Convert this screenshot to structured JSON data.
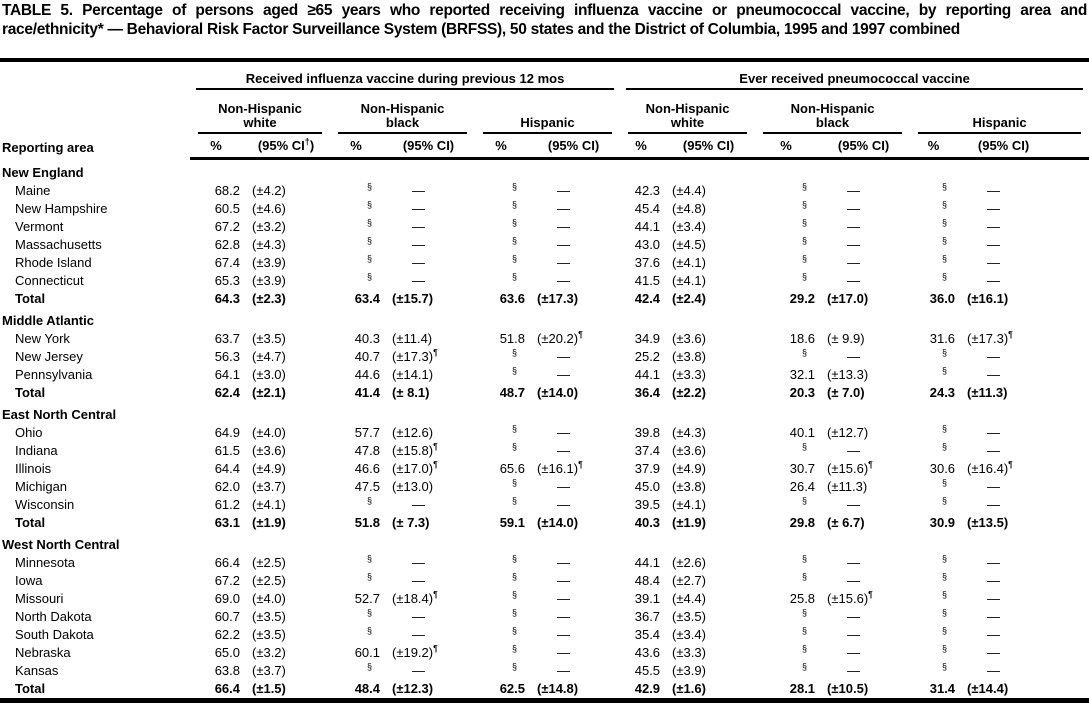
{
  "colors": {
    "text": "#000000",
    "background": "#ffffff",
    "rule": "#000000"
  },
  "title": "TABLE 5. Percentage of persons aged ≥65 years who reported receiving influenza vaccine or pneumococcal vaccine, by reporting area and race/ethnicity* — Behavioral Risk Factor Surveillance System (BRFSS), 50 states and the District of Columbia, 1995 and 1997 combined",
  "header": {
    "reporting_area_label": "Reporting area",
    "pct_label": "%",
    "ci_label": "(95% CI)",
    "ci_label_first": "(95% CI†)",
    "groups": [
      {
        "label": "Received influenza vaccine during previous 12 mos",
        "subgroups": [
          {
            "lines": [
              "Non-Hispanic",
              "white"
            ]
          },
          {
            "lines": [
              "Non-Hispanic",
              "black"
            ]
          },
          {
            "lines": [
              "Hispanic"
            ]
          }
        ]
      },
      {
        "label": "Ever received pneumococcal vaccine",
        "subgroups": [
          {
            "lines": [
              "Non-Hispanic",
              "white"
            ]
          },
          {
            "lines": [
              "Non-Hispanic",
              "black"
            ]
          },
          {
            "lines": [
              "Hispanic"
            ]
          }
        ]
      }
    ]
  },
  "sections": [
    {
      "name": "New England",
      "rows": [
        {
          "label": "Maine",
          "bold": false,
          "cells": [
            "68.2",
            "(±4.2)",
            "§",
            "—",
            "§",
            "—",
            "42.3",
            "(±4.4)",
            "§",
            "—",
            "§",
            "—"
          ]
        },
        {
          "label": "New Hampshire",
          "bold": false,
          "cells": [
            "60.5",
            "(±4.6)",
            "§",
            "—",
            "§",
            "—",
            "45.4",
            "(±4.8)",
            "§",
            "—",
            "§",
            "—"
          ]
        },
        {
          "label": "Vermont",
          "bold": false,
          "cells": [
            "67.2",
            "(±3.2)",
            "§",
            "—",
            "§",
            "—",
            "44.1",
            "(±3.4)",
            "§",
            "—",
            "§",
            "—"
          ]
        },
        {
          "label": "Massachusetts",
          "bold": false,
          "cells": [
            "62.8",
            "(±4.3)",
            "§",
            "—",
            "§",
            "—",
            "43.0",
            "(±4.5)",
            "§",
            "—",
            "§",
            "—"
          ]
        },
        {
          "label": "Rhode Island",
          "bold": false,
          "cells": [
            "67.4",
            "(±3.9)",
            "§",
            "—",
            "§",
            "—",
            "37.6",
            "(±4.1)",
            "§",
            "—",
            "§",
            "—"
          ]
        },
        {
          "label": "Connecticut",
          "bold": false,
          "cells": [
            "65.3",
            "(±3.9)",
            "§",
            "—",
            "§",
            "—",
            "41.5",
            "(±4.1)",
            "§",
            "—",
            "§",
            "—"
          ]
        },
        {
          "label": "Total",
          "bold": true,
          "cells": [
            "64.3",
            "(±2.3)",
            "63.4",
            "(±15.7)",
            "63.6",
            "(±17.3)",
            "42.4",
            "(±2.4)",
            "29.2",
            "(±17.0)",
            "36.0",
            "(±16.1)"
          ]
        }
      ]
    },
    {
      "name": "Middle Atlantic",
      "rows": [
        {
          "label": "New York",
          "bold": false,
          "cells": [
            "63.7",
            "(±3.5)",
            "40.3",
            "(±11.4)",
            "51.8",
            "(±20.2)¶",
            "34.9",
            "(±3.6)",
            "18.6",
            "(± 9.9)",
            "31.6",
            "(±17.3)¶"
          ]
        },
        {
          "label": "New Jersey",
          "bold": false,
          "cells": [
            "56.3",
            "(±4.7)",
            "40.7",
            "(±17.3)¶",
            "§",
            "—",
            "25.2",
            "(±3.8)",
            "§",
            "—",
            "§",
            "—"
          ]
        },
        {
          "label": "Pennsylvania",
          "bold": false,
          "cells": [
            "64.1",
            "(±3.0)",
            "44.6",
            "(±14.1)",
            "§",
            "—",
            "44.1",
            "(±3.3)",
            "32.1",
            "(±13.3)",
            "§",
            "—"
          ]
        },
        {
          "label": "Total",
          "bold": true,
          "cells": [
            "62.4",
            "(±2.1)",
            "41.4",
            "(± 8.1)",
            "48.7",
            "(±14.0)",
            "36.4",
            "(±2.2)",
            "20.3",
            "(± 7.0)",
            "24.3",
            "(±11.3)"
          ]
        }
      ]
    },
    {
      "name": "East North Central",
      "rows": [
        {
          "label": "Ohio",
          "bold": false,
          "cells": [
            "64.9",
            "(±4.0)",
            "57.7",
            "(±12.6)",
            "§",
            "—",
            "39.8",
            "(±4.3)",
            "40.1",
            "(±12.7)",
            "§",
            "—"
          ]
        },
        {
          "label": "Indiana",
          "bold": false,
          "cells": [
            "61.5",
            "(±3.6)",
            "47.8",
            "(±15.8)¶",
            "§",
            "—",
            "37.4",
            "(±3.6)",
            "§",
            "—",
            "§",
            "—"
          ]
        },
        {
          "label": "Illinois",
          "bold": false,
          "cells": [
            "64.4",
            "(±4.9)",
            "46.6",
            "(±17.0)¶",
            "65.6",
            "(±16.1)¶",
            "37.9",
            "(±4.9)",
            "30.7",
            "(±15.6)¶",
            "30.6",
            "(±16.4)¶"
          ]
        },
        {
          "label": "Michigan",
          "bold": false,
          "cells": [
            "62.0",
            "(±3.7)",
            "47.5",
            "(±13.0)",
            "§",
            "—",
            "45.0",
            "(±3.8)",
            "26.4",
            "(±11.3)",
            "§",
            "—"
          ]
        },
        {
          "label": "Wisconsin",
          "bold": false,
          "cells": [
            "61.2",
            "(±4.1)",
            "§",
            "—",
            "§",
            "—",
            "39.5",
            "(±4.1)",
            "§",
            "—",
            "§",
            "—"
          ]
        },
        {
          "label": "Total",
          "bold": true,
          "cells": [
            "63.1",
            "(±1.9)",
            "51.8",
            "(± 7.3)",
            "59.1",
            "(±14.0)",
            "40.3",
            "(±1.9)",
            "29.8",
            "(± 6.7)",
            "30.9",
            "(±13.5)"
          ]
        }
      ]
    },
    {
      "name": "West North Central",
      "rows": [
        {
          "label": "Minnesota",
          "bold": false,
          "cells": [
            "66.4",
            "(±2.5)",
            "§",
            "—",
            "§",
            "—",
            "44.1",
            "(±2.6)",
            "§",
            "—",
            "§",
            "—"
          ]
        },
        {
          "label": "Iowa",
          "bold": false,
          "cells": [
            "67.2",
            "(±2.5)",
            "§",
            "—",
            "§",
            "—",
            "48.4",
            "(±2.7)",
            "§",
            "—",
            "§",
            "—"
          ]
        },
        {
          "label": "Missouri",
          "bold": false,
          "cells": [
            "69.0",
            "(±4.0)",
            "52.7",
            "(±18.4)¶",
            "§",
            "—",
            "39.1",
            "(±4.4)",
            "25.8",
            "(±15.6)¶",
            "§",
            "—"
          ]
        },
        {
          "label": "North Dakota",
          "bold": false,
          "cells": [
            "60.7",
            "(±3.5)",
            "§",
            "—",
            "§",
            "—",
            "36.7",
            "(±3.5)",
            "§",
            "—",
            "§",
            "—"
          ]
        },
        {
          "label": "South Dakota",
          "bold": false,
          "cells": [
            "62.2",
            "(±3.5)",
            "§",
            "—",
            "§",
            "—",
            "35.4",
            "(±3.4)",
            "§",
            "—",
            "§",
            "—"
          ]
        },
        {
          "label": "Nebraska",
          "bold": false,
          "cells": [
            "65.0",
            "(±3.2)",
            "60.1",
            "(±19.2)¶",
            "§",
            "—",
            "43.6",
            "(±3.3)",
            "§",
            "—",
            "§",
            "—"
          ]
        },
        {
          "label": "Kansas",
          "bold": false,
          "cells": [
            "63.8",
            "(±3.7)",
            "§",
            "—",
            "§",
            "—",
            "45.5",
            "(±3.9)",
            "§",
            "—",
            "§",
            "—"
          ]
        },
        {
          "label": "Total",
          "bold": true,
          "cells": [
            "66.4",
            "(±1.5)",
            "48.4",
            "(±12.3)",
            "62.5",
            "(±14.8)",
            "42.9",
            "(±1.6)",
            "28.1",
            "(±10.5)",
            "31.4",
            "(±14.4)"
          ]
        }
      ]
    }
  ]
}
